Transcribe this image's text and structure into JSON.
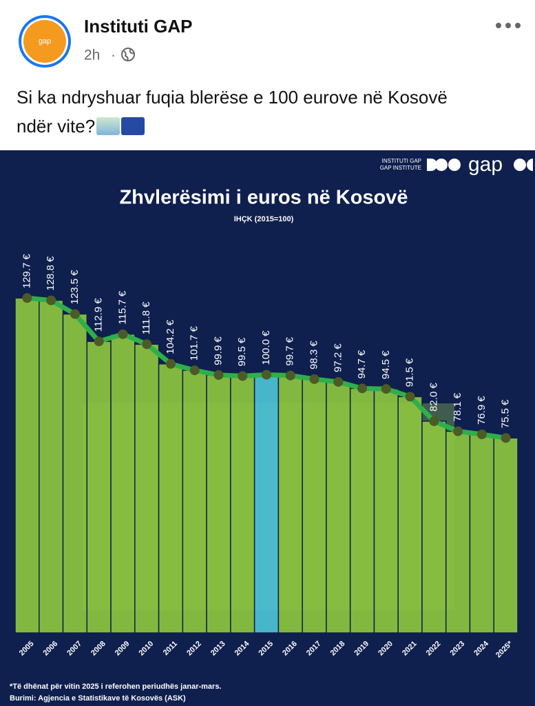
{
  "post": {
    "author": "Instituti GAP",
    "time": "2h",
    "separator": "·",
    "text": "Si ka ndryshuar fuqia blerëse e 100 eurove në Kosovë ndër vite?"
  },
  "logo": {
    "line1": "INSTITUTI GAP",
    "line2": "GAP INSTITUTE",
    "mark": "gap"
  },
  "chart_data": {
    "type": "area",
    "title": "Zhvlerësimi i euros në Kosovë",
    "subtitle": "IHÇK (2015=100)",
    "categories": [
      "2005",
      "2006",
      "2007",
      "2008",
      "2009",
      "2010",
      "2011",
      "2012",
      "2013",
      "2014",
      "2015",
      "2016",
      "2017",
      "2018",
      "2019",
      "2020",
      "2021",
      "2022",
      "2023",
      "2024",
      "2025*"
    ],
    "values": [
      129.7,
      128.8,
      123.5,
      112.9,
      115.7,
      111.8,
      104.2,
      101.7,
      99.9,
      99.5,
      100.0,
      99.7,
      98.3,
      97.2,
      94.7,
      94.5,
      91.5,
      82.0,
      78.1,
      76.9,
      75.5
    ],
    "value_labels": [
      "129.7 €",
      "128.8 €",
      "123.5 €",
      "112.9 €",
      "115.7 €",
      "111.8 €",
      "104.2 €",
      "101.7 €",
      "99.9 €",
      "99.5 €",
      "100.0 €",
      "99.7 €",
      "98.3 €",
      "97.2 €",
      "94.7 €",
      "94.5 €",
      "91.5 €",
      "82.0 €",
      "78.1 €",
      "76.9 €",
      "75.5 €"
    ],
    "color": "#8cc63f",
    "line_color": "#2fae4a",
    "highlight": "2015",
    "highlight_color": "#4cc3d6",
    "notes": [
      "*Të dhënat për vitin 2025 i referohen periudhës janar-mars.",
      "Burimi: Agjencia e Statistikave të Kosovës (ASK)"
    ]
  }
}
